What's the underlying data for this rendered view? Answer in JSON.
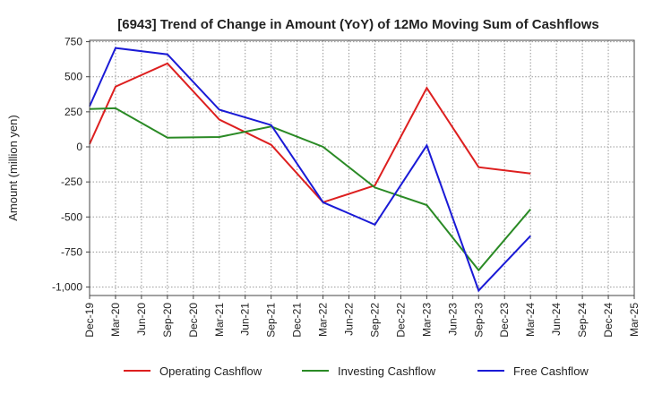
{
  "chart_data": {
    "type": "line",
    "title": "[6943]  Trend of Change in Amount (YoY) of 12Mo Moving Sum of Cashflows",
    "xlabel": "",
    "ylabel": "Amount (million yen)",
    "ylim": [
      -1060,
      760
    ],
    "yticks": [
      750,
      500,
      250,
      0,
      -250,
      -500,
      -750,
      -1000
    ],
    "ytick_labels": [
      "750",
      "500",
      "250",
      "0",
      "-250",
      "-500",
      "-750",
      "-1,000"
    ],
    "categories": [
      "Dec-19",
      "Mar-20",
      "Jun-20",
      "Sep-20",
      "Dec-20",
      "Mar-21",
      "Jun-21",
      "Sep-21",
      "Dec-21",
      "Mar-22",
      "Jun-22",
      "Sep-22",
      "Dec-22",
      "Mar-23",
      "Jun-23",
      "Sep-23",
      "Dec-23",
      "Mar-24",
      "Jun-24",
      "Sep-24",
      "Dec-24",
      "Mar-25"
    ],
    "grid": true,
    "legend_position": "bottom",
    "series": [
      {
        "name": "Operating Cashflow",
        "color": "#dd1f1f",
        "values": [
          20,
          430,
          null,
          595,
          null,
          195,
          null,
          15,
          null,
          -395,
          null,
          -275,
          null,
          420,
          null,
          -145,
          null,
          -190,
          null,
          null,
          null,
          null
        ]
      },
      {
        "name": "Investing Cashflow",
        "color": "#2a8a25",
        "values": [
          270,
          275,
          null,
          65,
          null,
          70,
          null,
          145,
          null,
          0,
          null,
          -290,
          null,
          -415,
          null,
          -880,
          null,
          -445,
          null,
          null,
          null,
          null
        ]
      },
      {
        "name": "Free Cashflow",
        "color": "#1a1ad6",
        "values": [
          290,
          705,
          null,
          660,
          null,
          265,
          null,
          155,
          null,
          -395,
          null,
          -555,
          null,
          10,
          null,
          -1025,
          null,
          -635,
          null,
          null,
          null,
          null
        ]
      }
    ]
  }
}
